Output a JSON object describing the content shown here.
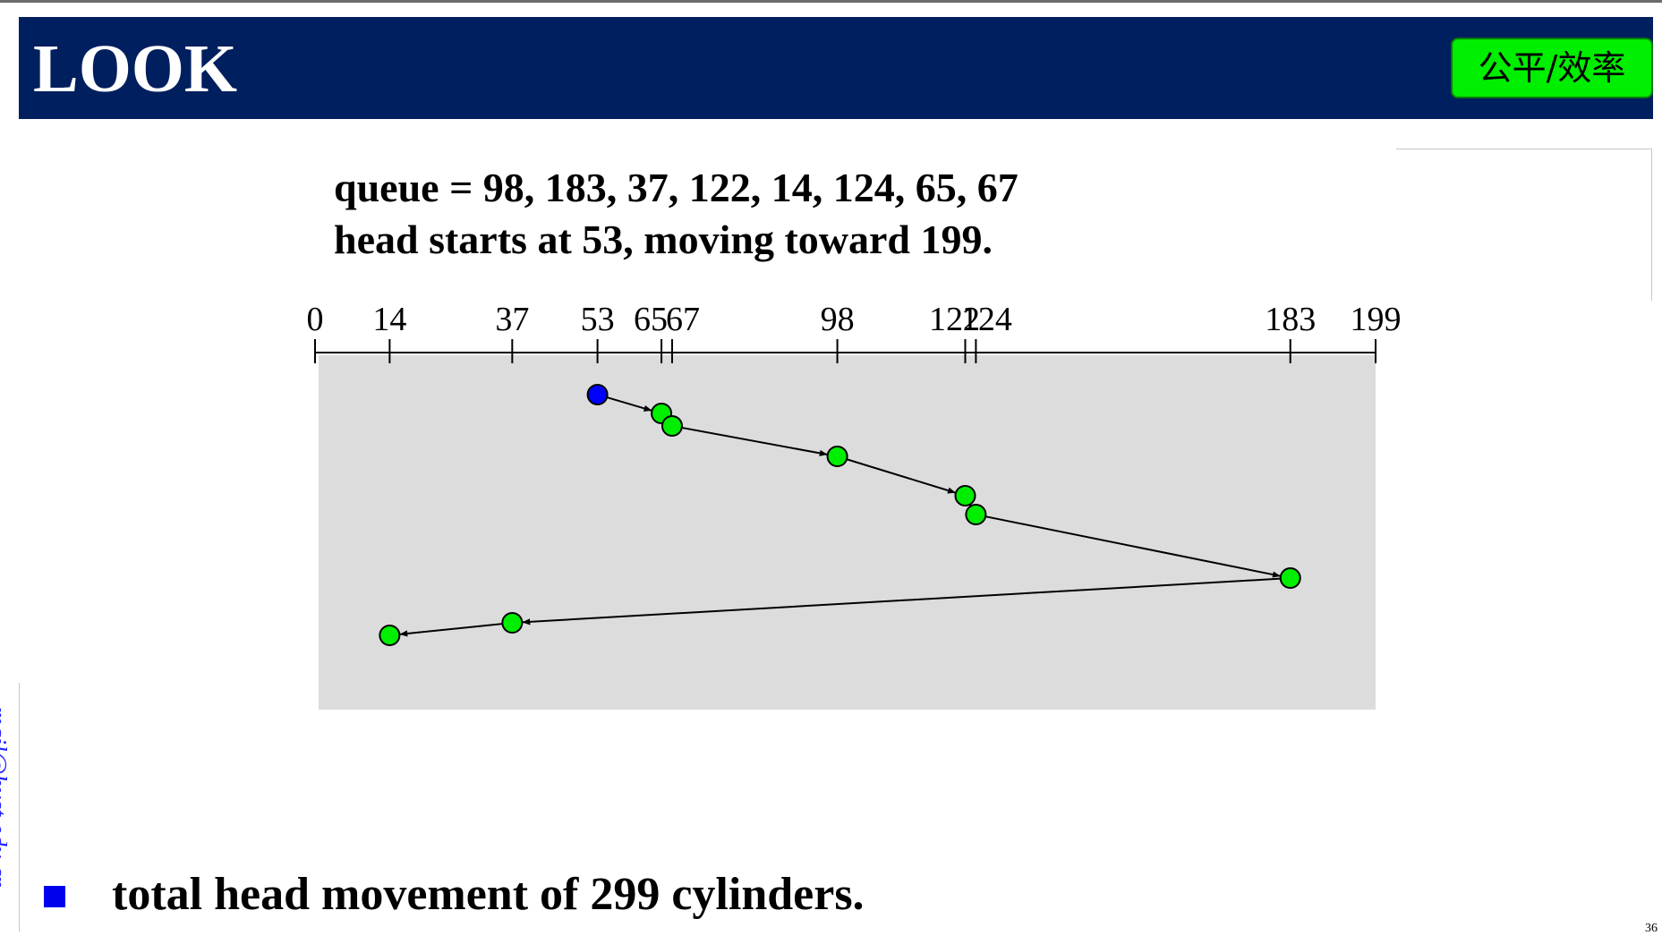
{
  "slide": {
    "title": "LOOK",
    "badge": "公平/效率",
    "side_text": "mail@hust.edu.cn",
    "page_number": "36"
  },
  "info": {
    "queue_line": "queue = 98, 183, 37, 122, 14, 124, 65, 67",
    "head_line": "head starts at 53, moving toward 199."
  },
  "chart_data": {
    "type": "diagram",
    "axis": {
      "min": 0,
      "max": 199,
      "ticks": [
        0,
        14,
        37,
        53,
        65,
        67,
        98,
        122,
        124,
        183,
        199
      ]
    },
    "start": 53,
    "sequence": [
      53,
      65,
      67,
      98,
      122,
      124,
      183,
      37,
      14
    ],
    "colors": {
      "start": "#0000ff",
      "request": "#00ee00",
      "area": "#dcdcdc"
    }
  },
  "summary": {
    "bullet": "total head movement of 299 cylinders."
  }
}
